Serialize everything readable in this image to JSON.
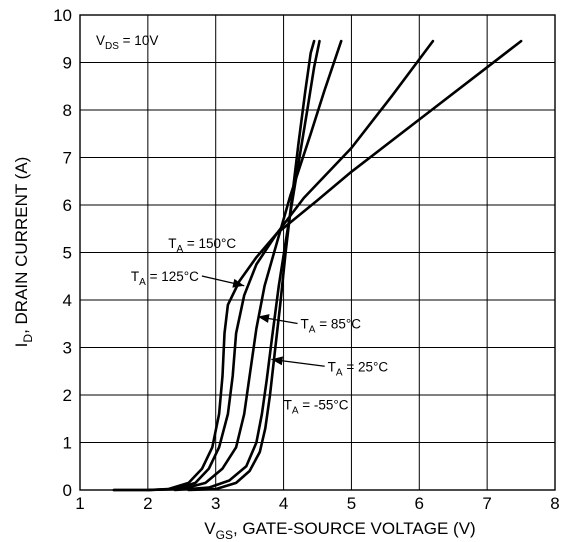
{
  "chart_data": {
    "type": "line",
    "title": "",
    "xlabel": {
      "prefix": "V",
      "sub": "GS",
      "rest": ", GATE-SOURCE VOLTAGE (V)"
    },
    "ylabel": {
      "prefix": "I",
      "sub": "D",
      "rest": ", DRAIN CURRENT (A)"
    },
    "xlim": [
      1,
      8
    ],
    "ylim": [
      0,
      10
    ],
    "xticks": [
      1,
      2,
      3,
      4,
      5,
      6,
      7,
      8
    ],
    "yticks": [
      0,
      1,
      2,
      3,
      4,
      5,
      6,
      7,
      8,
      9,
      10
    ],
    "grid": true,
    "condition": {
      "prefix": "V",
      "sub": "DS",
      "rest": " = 10V"
    },
    "series": [
      {
        "name": "T_A = 150°C",
        "label": {
          "prefix": "T",
          "sub": "A",
          "rest": " = 150°C"
        },
        "points": [
          [
            1.5,
            0
          ],
          [
            2.0,
            0
          ],
          [
            2.3,
            0.02
          ],
          [
            2.6,
            0.15
          ],
          [
            2.8,
            0.45
          ],
          [
            2.95,
            0.9
          ],
          [
            3.05,
            1.6
          ],
          [
            3.1,
            2.4
          ],
          [
            3.13,
            3.3
          ],
          [
            3.18,
            3.9
          ],
          [
            3.35,
            4.4
          ],
          [
            3.6,
            4.9
          ],
          [
            3.9,
            5.4
          ],
          [
            4.5,
            6.1
          ],
          [
            5.0,
            6.7
          ],
          [
            6.0,
            7.8
          ],
          [
            7.0,
            8.9
          ],
          [
            7.5,
            9.45
          ]
        ]
      },
      {
        "name": "T_A = 125°C",
        "label": {
          "prefix": "T",
          "sub": "A",
          "rest": " = 125°C"
        },
        "points": [
          [
            1.5,
            0
          ],
          [
            2.0,
            0
          ],
          [
            2.4,
            0.02
          ],
          [
            2.7,
            0.15
          ],
          [
            2.9,
            0.45
          ],
          [
            3.05,
            0.9
          ],
          [
            3.18,
            1.6
          ],
          [
            3.25,
            2.4
          ],
          [
            3.3,
            3.3
          ],
          [
            3.42,
            4.1
          ],
          [
            3.6,
            4.75
          ],
          [
            3.9,
            5.4
          ],
          [
            4.3,
            6.15
          ],
          [
            5.0,
            7.2
          ],
          [
            5.6,
            8.3
          ],
          [
            6.2,
            9.45
          ]
        ]
      },
      {
        "name": "T_A = 85°C",
        "label": {
          "prefix": "T",
          "sub": "A",
          "rest": " = 85°C"
        },
        "points": [
          [
            2.0,
            0
          ],
          [
            2.5,
            0.02
          ],
          [
            2.85,
            0.15
          ],
          [
            3.1,
            0.45
          ],
          [
            3.3,
            0.9
          ],
          [
            3.42,
            1.6
          ],
          [
            3.5,
            2.4
          ],
          [
            3.6,
            3.4
          ],
          [
            3.72,
            4.3
          ],
          [
            3.9,
            5.2
          ],
          [
            4.1,
            6.2
          ],
          [
            4.4,
            7.5
          ],
          [
            4.6,
            8.4
          ],
          [
            4.85,
            9.45
          ]
        ]
      },
      {
        "name": "T_A = 25°C",
        "label": {
          "prefix": "T",
          "sub": "A",
          "rest": " = 25°C"
        },
        "points": [
          [
            2.4,
            0
          ],
          [
            2.9,
            0.05
          ],
          [
            3.2,
            0.2
          ],
          [
            3.45,
            0.5
          ],
          [
            3.6,
            1.0
          ],
          [
            3.68,
            1.6
          ],
          [
            3.75,
            2.3
          ],
          [
            3.83,
            3.2
          ],
          [
            3.93,
            4.3
          ],
          [
            4.05,
            5.4
          ],
          [
            4.2,
            6.7
          ],
          [
            4.35,
            8.0
          ],
          [
            4.45,
            8.9
          ],
          [
            4.53,
            9.45
          ]
        ]
      },
      {
        "name": "T_A = -55°C",
        "label": {
          "prefix": "T",
          "sub": "A",
          "rest": " = -55°C"
        },
        "points": [
          [
            2.6,
            0
          ],
          [
            3.0,
            0.02
          ],
          [
            3.3,
            0.15
          ],
          [
            3.5,
            0.4
          ],
          [
            3.65,
            0.8
          ],
          [
            3.73,
            1.3
          ],
          [
            3.8,
            2.0
          ],
          [
            3.87,
            2.9
          ],
          [
            3.95,
            3.9
          ],
          [
            4.03,
            5.0
          ],
          [
            4.12,
            6.1
          ],
          [
            4.22,
            7.3
          ],
          [
            4.32,
            8.4
          ],
          [
            4.4,
            9.2
          ],
          [
            4.45,
            9.45
          ]
        ]
      }
    ],
    "annotations": [
      {
        "series": 0,
        "text_at": [
          2.3,
          5.1
        ],
        "arrow_to": null
      },
      {
        "series": 1,
        "text_at": [
          1.75,
          4.4
        ],
        "arrow_to": [
          3.42,
          4.3
        ]
      },
      {
        "series": 2,
        "text_at": [
          4.25,
          3.4
        ],
        "arrow_to": [
          3.62,
          3.65
        ]
      },
      {
        "series": 3,
        "text_at": [
          4.65,
          2.5
        ],
        "arrow_to": [
          3.82,
          2.75
        ]
      },
      {
        "series": 4,
        "text_at": [
          4.0,
          1.7
        ],
        "arrow_to": null
      }
    ]
  }
}
